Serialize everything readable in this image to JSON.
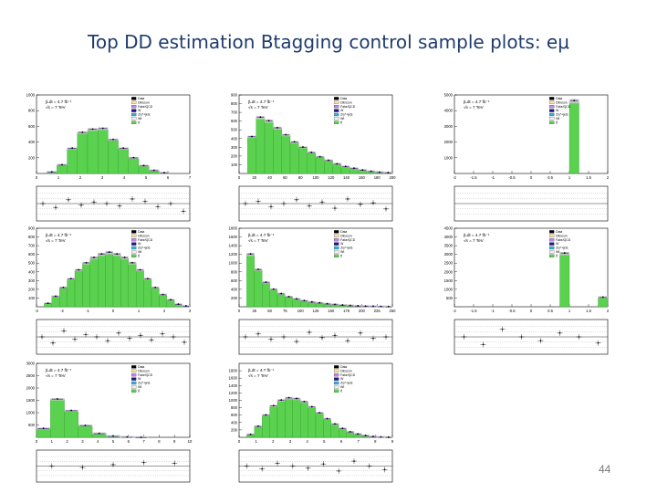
{
  "slide": {
    "title": "Top DD estimation Btagging control sample plots: eμ",
    "page_number": "44"
  },
  "colors": {
    "signal": "#5ad24f",
    "signal_edge": "#2e8a27",
    "band": "#c8c8c8",
    "data": "#000000",
    "slide_title": "#1f3c6e"
  },
  "chart_data": [
    {
      "type": "bar",
      "id": "p11",
      "categories": [
        "1",
        "2",
        "3",
        "4",
        "5",
        "6",
        "7",
        "8",
        "9",
        "10",
        "11",
        "12",
        "13",
        "14",
        "15"
      ],
      "values": [
        0,
        20,
        110,
        320,
        520,
        560,
        570,
        430,
        320,
        200,
        100,
        40,
        10,
        0,
        0
      ],
      "ylim": [
        0,
        1000
      ],
      "yticks": [
        "1000",
        "800",
        "600",
        "400",
        "200"
      ],
      "xticks": [
        "0",
        "1",
        "2",
        "3",
        "4",
        "5",
        "6",
        "7"
      ],
      "legend": [
        "Data",
        "Diboson",
        "Fake/QCD",
        "W",
        "Z/γ*+jets",
        "Wt",
        "tt̄"
      ],
      "stamp": [
        "∫Ldt = 4.7 fb⁻¹",
        "√s = 7 TeV"
      ],
      "ratio_points": [
        1.0,
        0.95,
        1.05,
        0.98,
        1.02,
        1.0,
        0.97,
        1.06,
        1.03,
        0.96,
        1.0,
        0.9
      ]
    },
    {
      "type": "bar",
      "id": "p12",
      "categories": [
        "1",
        "2",
        "3",
        "4",
        "5",
        "6",
        "7",
        "8",
        "9",
        "10",
        "11",
        "12",
        "13",
        "14",
        "15",
        "16",
        "17",
        "18"
      ],
      "values": [
        0,
        420,
        640,
        600,
        520,
        440,
        360,
        300,
        240,
        190,
        150,
        110,
        80,
        60,
        40,
        25,
        15,
        10
      ],
      "ylim": [
        0,
        900
      ],
      "yticks": [
        "900",
        "800",
        "700",
        "600",
        "500",
        "400",
        "300",
        "200",
        "100"
      ],
      "xticks": [
        "0",
        "20",
        "40",
        "60",
        "80",
        "100",
        "120",
        "140",
        "160",
        "180",
        "200"
      ],
      "legend": [
        "Data",
        "Diboson",
        "Fake/QCD",
        "W",
        "Z/γ*+jets",
        "Wt",
        "tt̄"
      ],
      "stamp": [
        "∫Ldt = 4.7 fb⁻¹",
        "√s = 7 TeV"
      ],
      "ratio_points": [
        1.0,
        1.03,
        0.96,
        1.0,
        1.05,
        0.97,
        1.02,
        0.94,
        1.06,
        0.99,
        1.01,
        0.93
      ]
    },
    {
      "type": "bar",
      "id": "p13",
      "categories": [
        "1",
        "2",
        "3",
        "4",
        "5",
        "6",
        "7",
        "8",
        "9",
        "10",
        "11",
        "12",
        "13",
        "14",
        "15",
        "16"
      ],
      "values": [
        0,
        0,
        0,
        0,
        0,
        0,
        0,
        0,
        0,
        0,
        0,
        0,
        4600,
        0,
        0,
        0
      ],
      "ylim": [
        0,
        5000
      ],
      "yticks": [
        "5000",
        "4000",
        "3000",
        "2000",
        "1000"
      ],
      "xticks": [
        "-2",
        "-1.5",
        "-1",
        "-0.5",
        "0",
        "0.5",
        "1",
        "1.5",
        "2"
      ],
      "legend": [
        "Data",
        "Diboson",
        "Fake/QCD",
        "W",
        "Z/γ*+jets",
        "Wt",
        "tt̄"
      ],
      "stamp": [
        "∫Ldt = 4.7 fb⁻¹",
        "√s = 7 TeV"
      ],
      "ratio_points": []
    },
    {
      "type": "bar",
      "id": "p21",
      "categories": [
        "1",
        "2",
        "3",
        "4",
        "5",
        "6",
        "7",
        "8",
        "9",
        "10",
        "11",
        "12",
        "13",
        "14",
        "15",
        "16",
        "17",
        "18",
        "19",
        "20"
      ],
      "values": [
        0,
        40,
        120,
        220,
        320,
        420,
        500,
        560,
        600,
        620,
        600,
        560,
        500,
        420,
        320,
        220,
        140,
        80,
        30,
        10
      ],
      "ylim": [
        0,
        900
      ],
      "yticks": [
        "900",
        "800",
        "700",
        "600",
        "500",
        "400",
        "300",
        "200",
        "100"
      ],
      "xticks": [
        "-3",
        "-2",
        "-1",
        "0",
        "1",
        "2",
        "3"
      ],
      "legend": [
        "Data",
        "Diboson",
        "Fake/QCD",
        "W",
        "Z/γ*+jets",
        "Wt",
        "tt̄"
      ],
      "stamp": [
        "∫Ldt = 4.7 fb⁻¹",
        "√s = 7 TeV"
      ],
      "ratio_points": [
        1.0,
        0.92,
        1.08,
        0.97,
        1.03,
        1.0,
        0.95,
        1.05,
        0.98,
        1.02,
        0.96,
        1.04,
        1.0,
        0.93
      ]
    },
    {
      "type": "bar",
      "id": "p22",
      "categories": [
        "1",
        "2",
        "3",
        "4",
        "5",
        "6",
        "7",
        "8",
        "9",
        "10",
        "11",
        "12",
        "13",
        "14",
        "15",
        "16",
        "17",
        "18",
        "19",
        "20"
      ],
      "values": [
        0,
        1200,
        850,
        560,
        400,
        300,
        230,
        180,
        140,
        110,
        90,
        70,
        55,
        40,
        30,
        22,
        16,
        12,
        8,
        5
      ],
      "ylim": [
        0,
        1800
      ],
      "yticks": [
        "1800",
        "1600",
        "1400",
        "1200",
        "1000",
        "800",
        "600",
        "400",
        "200"
      ],
      "xticks": [
        "0",
        "25",
        "50",
        "75",
        "100",
        "125",
        "150",
        "175",
        "200",
        "225",
        "250"
      ],
      "legend": [
        "Data",
        "Diboson",
        "Fake/QCD",
        "W",
        "Z/γ*+jets",
        "Wt",
        "tt̄"
      ],
      "stamp": [
        "∫Ldt = 4.7 fb⁻¹",
        "√s = 7 TeV"
      ],
      "ratio_points": [
        1.0,
        1.04,
        0.97,
        1.0,
        0.94,
        1.06,
        0.99,
        1.02,
        0.95,
        1.05,
        0.98,
        1.0
      ]
    },
    {
      "type": "bar",
      "id": "p23",
      "categories": [
        "1",
        "2",
        "3",
        "4",
        "5",
        "6",
        "7",
        "8",
        "9",
        "10",
        "11",
        "12",
        "13",
        "14",
        "15",
        "16"
      ],
      "values": [
        0,
        0,
        0,
        0,
        0,
        0,
        0,
        0,
        0,
        0,
        0,
        3050,
        0,
        0,
        0,
        550
      ],
      "ylim": [
        0,
        4500
      ],
      "yticks": [
        "4500",
        "4000",
        "3500",
        "3000",
        "2500",
        "2000",
        "1500",
        "1000",
        "500"
      ],
      "xticks": [
        "-2",
        "-1.5",
        "-1",
        "-0.5",
        "0",
        "0.5",
        "1",
        "1.5",
        "2"
      ],
      "legend": [
        "Data",
        "Diboson",
        "Fake/QCD",
        "W",
        "Z/γ*+jets",
        "Wt",
        "tt̄"
      ],
      "stamp": [
        "∫Ldt = 4.7 fb⁻¹",
        "√s = 7 TeV"
      ],
      "ratio_points": [
        1.0,
        0.9,
        1.1,
        1.0,
        0.95,
        1.05,
        1.0,
        0.92
      ]
    },
    {
      "type": "bar",
      "id": "p31",
      "categories": [
        "0",
        "1",
        "2",
        "3",
        "4",
        "5",
        "6",
        "7",
        "8",
        "9",
        "10"
      ],
      "values": [
        360,
        1540,
        1080,
        480,
        160,
        50,
        15,
        5,
        0,
        0,
        0
      ],
      "ylim": [
        0,
        3000
      ],
      "yticks": [
        "3000",
        "2500",
        "2000",
        "1500",
        "1000",
        "500"
      ],
      "xticks": [
        "0",
        "1",
        "2",
        "3",
        "4",
        "5",
        "6",
        "7",
        "8",
        "9",
        "10"
      ],
      "legend": [
        "Data",
        "Diboson",
        "Fake/QCD",
        "W",
        "Z/γ*+jets",
        "Wt",
        "tt̄"
      ],
      "stamp": [
        "∫Ldt = 4.7 fb⁻¹",
        "√s = 7 TeV"
      ],
      "ratio_points": [
        1.0,
        0.98,
        1.02,
        1.05,
        1.04
      ]
    },
    {
      "type": "bar",
      "id": "p32",
      "categories": [
        "1",
        "2",
        "3",
        "4",
        "5",
        "6",
        "7",
        "8",
        "9",
        "10",
        "11",
        "12",
        "13",
        "14",
        "15",
        "16",
        "17",
        "18",
        "19",
        "20"
      ],
      "values": [
        0,
        80,
        300,
        600,
        850,
        1000,
        1060,
        1040,
        960,
        820,
        660,
        500,
        360,
        240,
        150,
        90,
        50,
        25,
        10,
        5
      ],
      "ylim": [
        0,
        2000
      ],
      "yticks": [
        "1800",
        "1600",
        "1400",
        "1200",
        "1000",
        "800",
        "600",
        "400",
        "200"
      ],
      "xticks": [
        "0",
        "1",
        "2",
        "3",
        "4",
        "5",
        "6",
        "7",
        "8",
        "9"
      ],
      "legend": [
        "Data",
        "Diboson",
        "Fake/QCD",
        "W",
        "Z/γ*+jets",
        "Wt",
        "tt̄"
      ],
      "stamp": [
        "∫Ldt = 4.7 fb⁻¹",
        "√s = 7 TeV"
      ],
      "ratio_points": [
        1.0,
        0.96,
        1.04,
        1.0,
        0.97,
        1.03,
        0.93,
        1.07,
        1.0,
        0.95
      ]
    }
  ]
}
